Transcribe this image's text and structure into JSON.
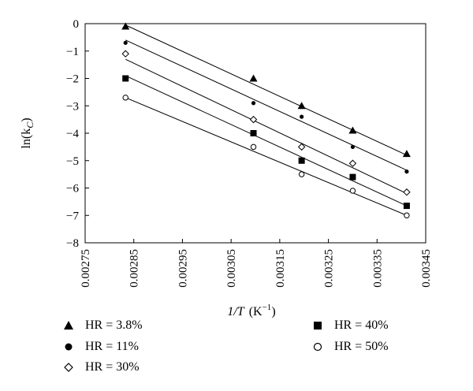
{
  "chart_data": {
    "type": "scatter",
    "xlabel_var": "1/T",
    "xlabel_unit": "(K",
    "xlabel_exp": "−1",
    "xlabel_close": ")",
    "ylabel_fn": "ln(k",
    "ylabel_sub": "C",
    "ylabel_close": ")",
    "xlim": [
      0.00275,
      0.00345
    ],
    "ylim": [
      -8,
      0
    ],
    "xticks": [
      0.00275,
      0.00285,
      0.00295,
      0.00305,
      0.00315,
      0.00325,
      0.00335,
      0.00345
    ],
    "xtick_labels": [
      "0.00275",
      "0.00285",
      "0.00295",
      "0.00305",
      "0.00315",
      "0.00325",
      "0.00335",
      "0.00345"
    ],
    "yticks": [
      0,
      -1,
      -2,
      -3,
      -4,
      -5,
      -6,
      -7,
      -8
    ],
    "ytick_labels": [
      "0",
      "−1",
      "−2",
      "−3",
      "−4",
      "−5",
      "−6",
      "−7",
      "−8"
    ],
    "grid": false,
    "legend_placement": "below",
    "series": [
      {
        "name": "HR = 3.8%",
        "marker": "filled-triangle",
        "x": [
          0.002833,
          0.003096,
          0.003195,
          0.0033,
          0.003411
        ],
        "y": [
          -0.1,
          -2.0,
          -3.0,
          -3.9,
          -4.75
        ],
        "fit": [
          [
            0.002833,
            -0.05
          ],
          [
            0.003411,
            -4.8
          ]
        ]
      },
      {
        "name": "HR = 11%",
        "marker": "filled-circle",
        "x": [
          0.002833,
          0.003096,
          0.003195,
          0.0033,
          0.003411
        ],
        "y": [
          -0.7,
          -2.9,
          -3.4,
          -4.5,
          -5.4
        ],
        "fit": [
          [
            0.002833,
            -0.6
          ],
          [
            0.003411,
            -5.35
          ]
        ]
      },
      {
        "name": "HR = 30%",
        "marker": "open-diamond",
        "x": [
          0.002833,
          0.003096,
          0.003195,
          0.0033,
          0.003411
        ],
        "y": [
          -1.1,
          -3.5,
          -4.5,
          -5.1,
          -6.15
        ],
        "fit": [
          [
            0.002833,
            -1.3
          ],
          [
            0.003411,
            -6.2
          ]
        ]
      },
      {
        "name": "HR = 40%",
        "marker": "filled-square",
        "x": [
          0.002833,
          0.003096,
          0.003195,
          0.0033,
          0.003411
        ],
        "y": [
          -2.0,
          -4.0,
          -5.0,
          -5.6,
          -6.65
        ],
        "fit": [
          [
            0.002833,
            -1.9
          ],
          [
            0.003411,
            -6.65
          ]
        ]
      },
      {
        "name": "HR = 50%",
        "marker": "open-circle",
        "x": [
          0.002833,
          0.003096,
          0.003195,
          0.0033,
          0.003411
        ],
        "y": [
          -2.7,
          -4.5,
          -5.5,
          -6.1,
          -7.0
        ],
        "fit": [
          [
            0.002833,
            -2.7
          ],
          [
            0.003411,
            -7.0
          ]
        ]
      }
    ]
  }
}
